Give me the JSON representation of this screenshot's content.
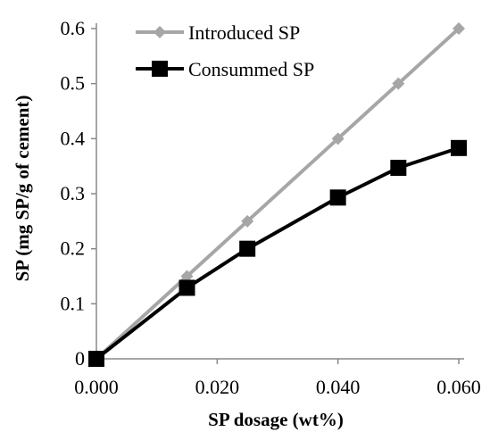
{
  "chart_data": {
    "type": "line",
    "xlabel": "SP dosage (wt%)",
    "ylabel": "SP (mg SP/g of cement)",
    "xlim": [
      0,
      0.06
    ],
    "ylim": [
      0,
      0.6
    ],
    "x_ticks": [
      "0.000",
      "0.020",
      "0.040",
      "0.060"
    ],
    "y_ticks": [
      "0",
      "0.1",
      "0.2",
      "0.3",
      "0.4",
      "0.5",
      "0.6"
    ],
    "grid": false,
    "legend_position": "top-left",
    "series": [
      {
        "name": "Introduced SP",
        "color": "#a6a6a6",
        "marker": "diamond",
        "x": [
          0,
          0.015,
          0.025,
          0.04,
          0.05,
          0.06
        ],
        "y": [
          0,
          0.15,
          0.25,
          0.4,
          0.5,
          0.6
        ]
      },
      {
        "name": "Consummed SP",
        "color": "#000000",
        "marker": "square",
        "x": [
          0,
          0.015,
          0.025,
          0.04,
          0.05,
          0.06
        ],
        "y": [
          0,
          0.129,
          0.2,
          0.293,
          0.347,
          0.383
        ]
      }
    ]
  }
}
